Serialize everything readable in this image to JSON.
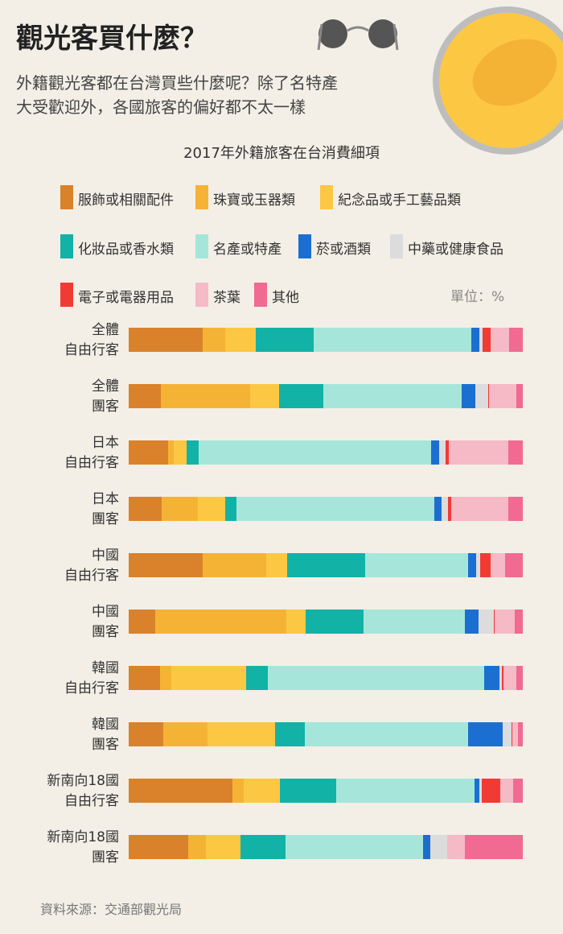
{
  "title": "觀光客買什麼？",
  "subtitle": "外籍觀光客都在台灣買些什麼呢？除了名特產\n大受歡迎外，各國旅客的偏好都不太一樣",
  "source": "資料來源：交通部觀光局",
  "chart_data": {
    "type": "stacked-bar",
    "orientation": "horizontal",
    "title": "2017年外籍旅客在台消費細項",
    "unit": "單位：%",
    "xlim": [
      0,
      100
    ],
    "categories": [
      "全體\n自由行客",
      "全體\n團客",
      "日本\n自由行客",
      "日本\n團客",
      "中國\n自由行客",
      "中國\n團客",
      "韓國\n自由行客",
      "韓國\n團客",
      "新南向18國\n自由行客",
      "新南向18國\n團客"
    ],
    "series": [
      {
        "name": "服飾或相關配件",
        "color": "#d9822b",
        "values": [
          18.8,
          8.2,
          10.0,
          8.4,
          18.8,
          6.7,
          8.0,
          8.8,
          26.3,
          15.1
        ]
      },
      {
        "name": "珠寶或玉器類",
        "color": "#f5b335",
        "values": [
          5.7,
          22.7,
          1.4,
          9.2,
          16.1,
          33.3,
          2.9,
          11.2,
          2.9,
          4.5
        ]
      },
      {
        "name": "紀念品或手工藝品類",
        "color": "#fcc843",
        "values": [
          7.8,
          7.3,
          3.3,
          6.9,
          5.3,
          4.9,
          18.8,
          17.1,
          9.2,
          8.8
        ]
      },
      {
        "name": "化妝品或香水類",
        "color": "#13b2a6",
        "values": [
          14.7,
          11.2,
          3.1,
          2.9,
          19.8,
          14.7,
          5.7,
          7.6,
          14.3,
          11.4
        ]
      },
      {
        "name": "名產或特產",
        "color": "#a6e6da",
        "values": [
          40.0,
          35.1,
          59.0,
          50.2,
          26.1,
          25.7,
          54.9,
          41.4,
          35.1,
          34.9
        ]
      },
      {
        "name": "菸或酒類",
        "color": "#1b6fd1",
        "values": [
          2.0,
          3.5,
          2.0,
          1.8,
          2.0,
          3.5,
          3.7,
          8.8,
          1.2,
          1.8
        ]
      },
      {
        "name": "中藥或健康食品",
        "color": "#dcdcdc",
        "values": [
          0.8,
          3.3,
          1.6,
          1.6,
          1.0,
          3.9,
          0.6,
          2.2,
          0.6,
          4.3
        ]
      },
      {
        "name": "電子或電器用品",
        "color": "#f23a35",
        "values": [
          2.0,
          0.2,
          0.8,
          0.8,
          2.7,
          0.2,
          0.6,
          0.2,
          4.7,
          0.0
        ]
      },
      {
        "name": "茶葉",
        "color": "#f6b9c6",
        "values": [
          4.7,
          6.9,
          15.1,
          14.5,
          3.7,
          5.1,
          3.1,
          1.4,
          3.3,
          4.5
        ]
      },
      {
        "name": "其他",
        "color": "#f06a91",
        "values": [
          3.5,
          1.6,
          3.7,
          3.7,
          4.5,
          2.0,
          1.7,
          1.3,
          2.4,
          14.7
        ]
      }
    ]
  }
}
